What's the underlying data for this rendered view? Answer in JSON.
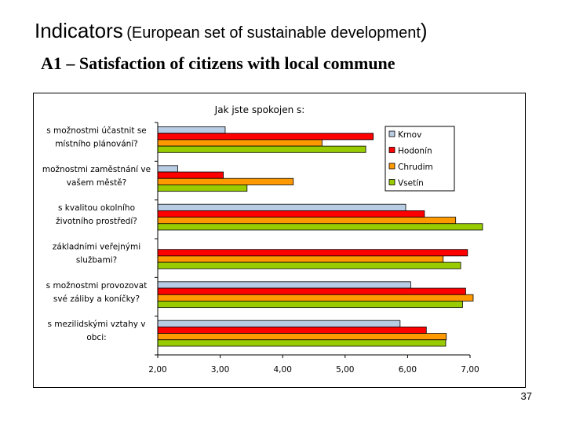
{
  "slide": {
    "title_main": "Indicators",
    "title_paren_text": "European set of sustainable development",
    "subtitle": "A1 – Satisfaction of citizens with local commune",
    "page_number": "37"
  },
  "chart_data": {
    "type": "bar",
    "orientation": "horizontal",
    "title": "Jak jste spokojen s:",
    "categories": [
      [
        "s možnostmi účastnit se",
        "místního plánování?"
      ],
      [
        "možnostmi zaměstnání ve",
        "vašem městě?"
      ],
      [
        "s kvalitou okolního",
        "životního prostředí?"
      ],
      [
        "základními veřejnými",
        "službami?"
      ],
      [
        "s možnostmi provozovat",
        "své záliby a koníčky?"
      ],
      [
        "s mezilidskými vztahy v",
        "obci:"
      ]
    ],
    "series": [
      {
        "name": "Krnov",
        "color": "#b8cce4",
        "values": [
          3.08,
          2.32,
          5.97,
          2.0,
          6.05,
          5.88
        ]
      },
      {
        "name": "Hodonín",
        "color": "#ff0000",
        "values": [
          5.45,
          3.05,
          6.27,
          6.96,
          6.93,
          6.3
        ]
      },
      {
        "name": "Chrudim",
        "color": "#ff9900",
        "values": [
          4.63,
          4.17,
          6.77,
          6.57,
          7.05,
          6.62
        ]
      },
      {
        "name": "Vsetín",
        "color": "#99cc00",
        "values": [
          5.33,
          3.43,
          7.2,
          6.85,
          6.88,
          6.61
        ]
      }
    ],
    "xlim": [
      2.0,
      7.0
    ],
    "xticks": [
      "2,00",
      "3,00",
      "4,00",
      "5,00",
      "6,00",
      "7,00"
    ],
    "legend_position": "top-right",
    "grid": false
  }
}
